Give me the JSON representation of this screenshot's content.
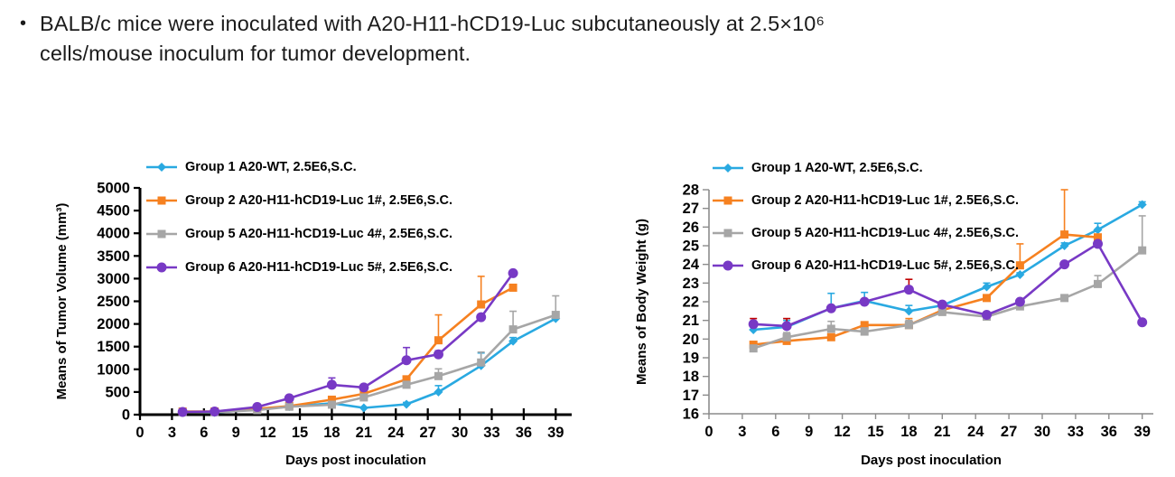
{
  "slide": {
    "bullet": "•",
    "title": "BALB/c mice were inoculated with A20-H11-hCD19-Luc subcutaneously at 2.5×10⁶\ncells/mouse inoculum for tumor development."
  },
  "colors": {
    "group1_blue": "#29A9E1",
    "group2_orange": "#F68120",
    "group5_gray": "#A6A6A6",
    "group6_purple": "#7839C5",
    "error_red": "#C00000",
    "left_axis": "#000000",
    "right_axis": "#8C8C8C",
    "text": "#000000"
  },
  "chart_data": [
    {
      "type": "line",
      "name": "tumor-volume",
      "title": "",
      "xlabel": "Days post inoculation",
      "ylabel": "Means of Tumor Volume (mm³)",
      "xlim": [
        0,
        40.5
      ],
      "ylim": [
        0,
        5000
      ],
      "xticks": [
        0,
        3,
        6,
        9,
        12,
        15,
        18,
        21,
        24,
        27,
        30,
        33,
        36,
        39
      ],
      "yticks": [
        0,
        500,
        1000,
        1500,
        2000,
        2500,
        3000,
        3500,
        4000,
        4500,
        5000
      ],
      "grid": false,
      "legend_position": "top-left",
      "axis_color": "#000000",
      "axis_width": 3,
      "x": [
        4,
        7,
        11,
        14,
        18,
        21,
        25,
        28,
        32,
        35,
        39
      ],
      "series": [
        {
          "name": "Group 1 A20-WT, 2.5E6,S.C.",
          "color": "#29A9E1",
          "marker": "diamond",
          "values": [
            60,
            50,
            110,
            180,
            250,
            150,
            230,
            500,
            1080,
            1620,
            2120
          ],
          "err": [
            0,
            0,
            0,
            0,
            100,
            0,
            40,
            140,
            280,
            80,
            60
          ]
        },
        {
          "name": "Group 2 A20-H11-hCD19-Luc 1#, 2.5E6,S.C.",
          "color": "#F68120",
          "marker": "square",
          "values": [
            70,
            70,
            130,
            190,
            330,
            460,
            780,
            1640,
            2430,
            2800,
            null
          ],
          "err": [
            0,
            0,
            0,
            0,
            60,
            50,
            60,
            560,
            620,
            0,
            null
          ]
        },
        {
          "name": "Group 5 A20-H11-hCD19-Luc 4#, 2.5E6,S.C.",
          "color": "#A6A6A6",
          "marker": "square",
          "values": [
            55,
            55,
            100,
            175,
            220,
            380,
            660,
            850,
            1150,
            1880,
            2200
          ],
          "err": [
            0,
            0,
            20,
            30,
            60,
            50,
            60,
            160,
            230,
            400,
            420
          ]
        },
        {
          "name": "Group 6 A20-H11-hCD19-Luc 5#, 2.5E6,S.C.",
          "color": "#7839C5",
          "marker": "circle",
          "values": [
            60,
            70,
            170,
            360,
            660,
            600,
            1200,
            1330,
            2150,
            3120,
            null
          ],
          "err": [
            0,
            0,
            0,
            60,
            150,
            60,
            280,
            80,
            0,
            0,
            null
          ]
        }
      ]
    },
    {
      "type": "line",
      "name": "body-weight",
      "title": "",
      "xlabel": "Days post inoculation",
      "ylabel": "Means of Body Weight (g)",
      "xlim": [
        0,
        40
      ],
      "ylim": [
        16,
        28
      ],
      "xticks": [
        0,
        3,
        6,
        9,
        12,
        15,
        18,
        21,
        24,
        27,
        30,
        33,
        36,
        39
      ],
      "yticks": [
        16,
        17,
        18,
        19,
        20,
        21,
        22,
        23,
        24,
        25,
        26,
        27,
        28
      ],
      "grid": false,
      "legend_position": "top-left",
      "axis_color": "#8C8C8C",
      "axis_width": 1.6,
      "x": [
        4,
        7,
        11,
        14,
        18,
        21,
        25,
        28,
        32,
        35,
        39
      ],
      "series": [
        {
          "name": "Group 1 A20-WT, 2.5E6,S.C.",
          "color": "#29A9E1",
          "marker": "diamond",
          "values": [
            20.5,
            20.65,
            21.65,
            22.05,
            21.5,
            21.8,
            22.8,
            23.45,
            25.0,
            25.85,
            27.2
          ],
          "err": [
            0.15,
            0.35,
            0.8,
            0.45,
            0.3,
            0.15,
            0.2,
            0.1,
            0.15,
            0.35,
            0.15
          ]
        },
        {
          "name": "Group 2 A20-H11-hCD19-Luc 1#, 2.5E6,S.C.",
          "color": "#F68120",
          "marker": "square",
          "values": [
            19.7,
            19.9,
            20.1,
            20.75,
            20.75,
            21.55,
            22.2,
            23.95,
            25.6,
            25.45,
            null
          ],
          "err": [
            0.1,
            0.15,
            0.1,
            0.15,
            0.35,
            0.1,
            0.1,
            1.15,
            2.4,
            0.1,
            null
          ]
        },
        {
          "name": "Group 5 A20-H11-hCD19-Luc 4#, 2.5E6,S.C.",
          "color": "#A6A6A6",
          "marker": "square",
          "values": [
            19.5,
            20.1,
            20.55,
            20.4,
            20.75,
            21.45,
            21.2,
            21.75,
            22.2,
            22.95,
            24.75
          ],
          "err": [
            0.1,
            0.25,
            0.4,
            0.2,
            0.25,
            0.1,
            0.1,
            0.1,
            0.1,
            0.45,
            1.85
          ]
        },
        {
          "name": "Group 6 A20-H11-hCD19-Luc 5#, 2.5E6,S.C.",
          "color": "#7839C5",
          "marker": "circle",
          "err_color": "#C00000",
          "values": [
            20.8,
            20.7,
            21.65,
            22.0,
            22.65,
            21.85,
            21.3,
            22.0,
            24.0,
            25.1,
            20.9
          ],
          "err": [
            0.3,
            0.4,
            0.1,
            0.1,
            0.55,
            0.1,
            0.1,
            0.1,
            0.1,
            0.1,
            0.1
          ]
        }
      ]
    }
  ]
}
